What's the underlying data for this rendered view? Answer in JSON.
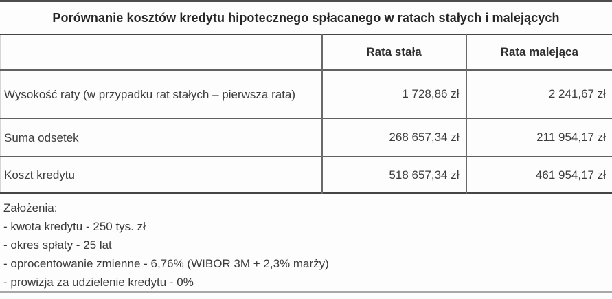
{
  "title": "Porównanie kosztów kredytu hipotecznego spłacanego w ratach stałych i malejących",
  "table": {
    "columns": [
      "",
      "Rata stała",
      "Rata malejąca"
    ],
    "rows": [
      {
        "label": "Wysokość raty (w przypadku rat stałych – pierwsza rata)",
        "fixed": "1 728,86 zł",
        "decreasing": "2 241,67 zł"
      },
      {
        "label": "Suma odsetek",
        "fixed": "268 657,34 zł",
        "decreasing": "211 954,17 zł"
      },
      {
        "label": "Koszt kredytu",
        "fixed": "518 657,34 zł",
        "decreasing": "461 954,17 zł"
      }
    ]
  },
  "assumptions": {
    "heading": "Założenia:",
    "items": [
      "- kwota kredytu - 250 tys. zł",
      "- okres spłaty - 25 lat",
      "- oprocentowanie zmienne - 6,76% (WIBOR 3M + 2,3% marży)",
      "- prowizja za udzielenie kredytu - 0%"
    ]
  }
}
